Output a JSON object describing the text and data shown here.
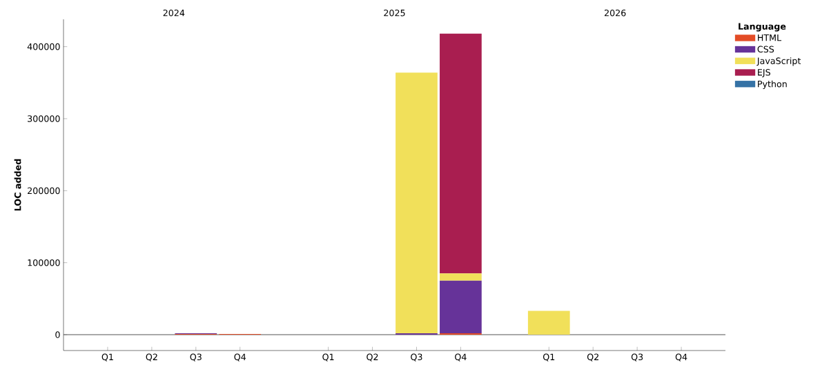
{
  "chart_data": {
    "type": "bar",
    "stacked": true,
    "ylabel": "LOC added",
    "legend_title": "Language",
    "legend": "top right",
    "categories": [
      "Q1",
      "Q2",
      "Q3",
      "Q4",
      null,
      "Q1",
      "Q2",
      "Q3",
      "Q4",
      null,
      "Q1",
      "Q2",
      "Q3",
      "Q4"
    ],
    "series": [
      {
        "name": "HTML",
        "color": "#e34c26",
        "values": [
          0,
          0,
          1000,
          1000,
          null,
          0,
          0,
          0,
          2000,
          null,
          0,
          0,
          0,
          0
        ]
      },
      {
        "name": "CSS",
        "color": "#663399",
        "values": [
          0,
          0,
          1000,
          0,
          null,
          0,
          0,
          2000,
          73000,
          null,
          0,
          0,
          0,
          0
        ]
      },
      {
        "name": "JavaScript",
        "color": "#f1e05a",
        "values": [
          0,
          0,
          0,
          0,
          null,
          0,
          0,
          362000,
          10000,
          null,
          33000,
          0,
          0,
          0
        ]
      },
      {
        "name": "EJS",
        "color": "#a91e50",
        "values": [
          0,
          0,
          0,
          0,
          null,
          0,
          0,
          0,
          333000,
          null,
          0,
          0,
          0,
          0
        ]
      },
      {
        "name": "Python",
        "color": "#3572a5",
        "values": [
          0,
          0,
          0,
          0,
          null,
          0,
          0,
          0,
          0,
          null,
          0,
          0,
          0,
          0
        ]
      }
    ],
    "ylim": [
      -22000,
      438000
    ],
    "yticks": [
      0,
      100000,
      200000,
      300000,
      400000
    ],
    "ref_lines": [
      {
        "axis": "y",
        "value": 0,
        "color": "#555555"
      }
    ],
    "annotations": [
      "2024",
      "2025",
      "2026"
    ],
    "grid": false
  }
}
